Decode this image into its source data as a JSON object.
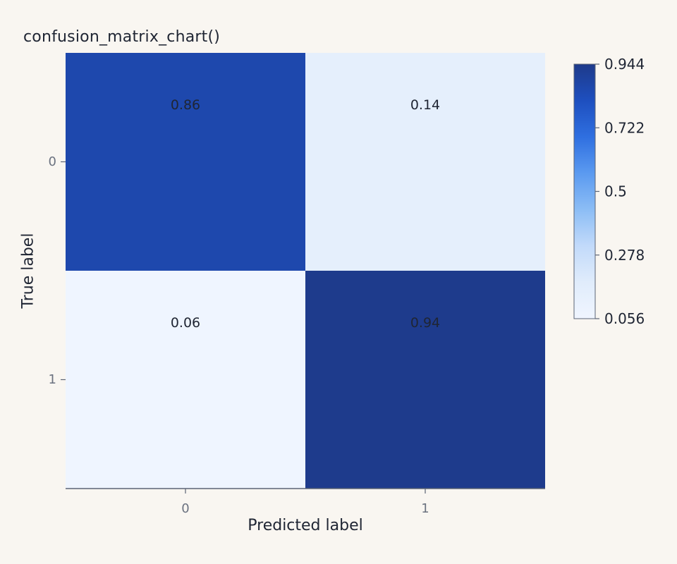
{
  "chart_data": {
    "type": "heatmap",
    "title": "confusion_matrix_chart()",
    "xlabel": "Predicted label",
    "ylabel": "True label",
    "x_categories": [
      "0",
      "1"
    ],
    "y_categories": [
      "0",
      "1"
    ],
    "values": [
      [
        0.86,
        0.14
      ],
      [
        0.06,
        0.94
      ]
    ],
    "cell_labels": [
      [
        "0.86",
        "0.14"
      ],
      [
        "0.06",
        "0.94"
      ]
    ],
    "colorscale": [
      "#f0f5ff",
      "#e0ecfb",
      "#c2dafa",
      "#8cbdf5",
      "#5b9af0",
      "#2f6fe0",
      "#1e4fbf",
      "#1e3a8a"
    ],
    "colorbar": {
      "range": [
        0.056,
        0.944
      ],
      "ticks": [
        "0.944",
        "0.722",
        "0.5",
        "0.278",
        "0.056"
      ]
    }
  }
}
